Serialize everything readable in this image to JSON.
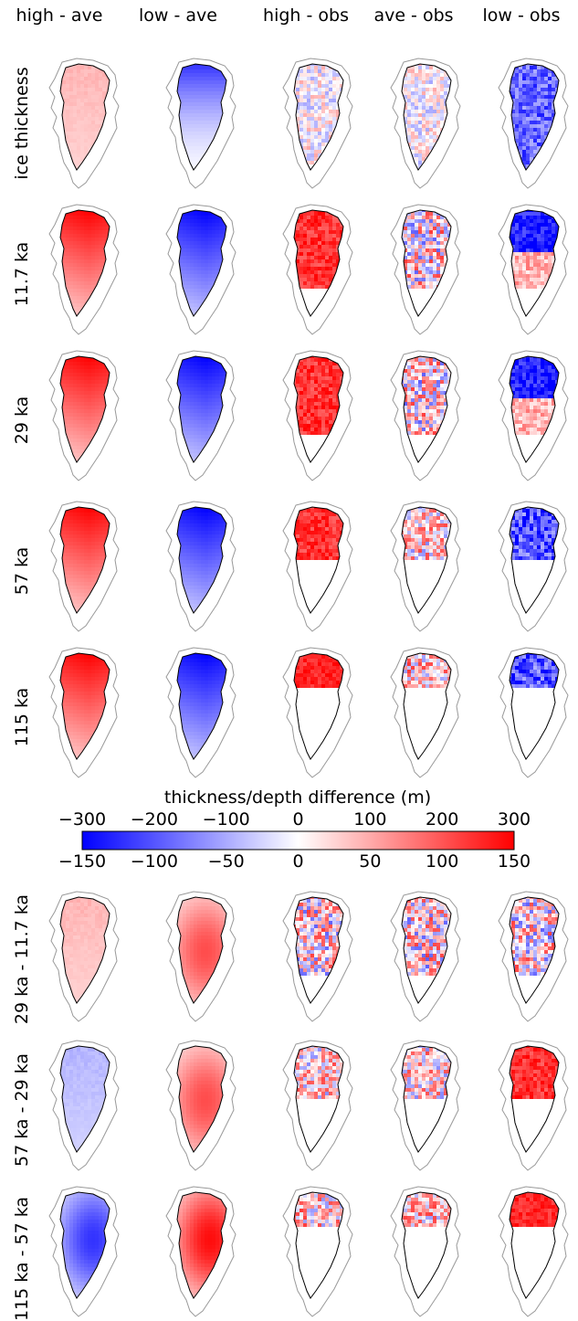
{
  "column_labels": [
    "high - ave",
    "low - ave",
    "high - obs",
    "ave - obs",
    "low - obs"
  ],
  "top_row_labels": [
    "ice thickness",
    "11.7 ka",
    "29 ka",
    "57 ka",
    "115 ka"
  ],
  "bottom_row_labels": [
    "29 ka - 11.7 ka",
    "57 ka - 29 ka",
    "115 ka - 57 ka"
  ],
  "colors": {
    "negative": "#0000ff",
    "zero": "#ffffff",
    "positive": "#ff0000",
    "outline_outer": "#999999",
    "outline_inner": "#000000"
  },
  "chart_data": {
    "type": "heatmap",
    "colorbar": {
      "title": "thickness/depth difference (m)",
      "top_ticks": [
        "−300",
        "−200",
        "−100",
        "0",
        "100",
        "200",
        "300"
      ],
      "bottom_ticks": [
        "−150",
        "−100",
        "−50",
        "0",
        "50",
        "100",
        "150"
      ],
      "top_range": [
        -300,
        300
      ],
      "bottom_range": [
        -150,
        150
      ],
      "colormap": "bwr"
    },
    "panels": [
      {
        "row": "ice thickness",
        "col": "high - ave",
        "pattern": "weak-positive"
      },
      {
        "row": "ice thickness",
        "col": "low - ave",
        "pattern": "negative-north"
      },
      {
        "row": "ice thickness",
        "col": "high - obs",
        "pattern": "mixed-noisy"
      },
      {
        "row": "ice thickness",
        "col": "ave - obs",
        "pattern": "mixed-noisy"
      },
      {
        "row": "ice thickness",
        "col": "low - obs",
        "pattern": "negative-noisy"
      },
      {
        "row": "11.7 ka",
        "col": "high - ave",
        "pattern": "positive-strong"
      },
      {
        "row": "11.7 ka",
        "col": "low - ave",
        "pattern": "negative-strong"
      },
      {
        "row": "11.7 ka",
        "col": "high - obs",
        "pattern": "positive-patch"
      },
      {
        "row": "11.7 ka",
        "col": "ave - obs",
        "pattern": "mixed-patch"
      },
      {
        "row": "11.7 ka",
        "col": "low - obs",
        "pattern": "negative-patch"
      },
      {
        "row": "29 ka",
        "col": "high - ave",
        "pattern": "positive-strong"
      },
      {
        "row": "29 ka",
        "col": "low - ave",
        "pattern": "negative-strong"
      },
      {
        "row": "29 ka",
        "col": "high - obs",
        "pattern": "positive-patch"
      },
      {
        "row": "29 ka",
        "col": "ave - obs",
        "pattern": "mixed-patch"
      },
      {
        "row": "29 ka",
        "col": "low - obs",
        "pattern": "negative-patch"
      },
      {
        "row": "57 ka",
        "col": "high - ave",
        "pattern": "positive-strong"
      },
      {
        "row": "57 ka",
        "col": "low - ave",
        "pattern": "negative-strong"
      },
      {
        "row": "57 ka",
        "col": "high - obs",
        "pattern": "positive-small"
      },
      {
        "row": "57 ka",
        "col": "ave - obs",
        "pattern": "mixed-small"
      },
      {
        "row": "57 ka",
        "col": "low - obs",
        "pattern": "negative-small"
      },
      {
        "row": "115 ka",
        "col": "high - ave",
        "pattern": "positive-strong"
      },
      {
        "row": "115 ka",
        "col": "low - ave",
        "pattern": "negative-strong"
      },
      {
        "row": "115 ka",
        "col": "high - obs",
        "pattern": "positive-tiny"
      },
      {
        "row": "115 ka",
        "col": "ave - obs",
        "pattern": "mixed-tiny"
      },
      {
        "row": "115 ka",
        "col": "low - obs",
        "pattern": "negative-tiny"
      },
      {
        "row": "29 ka - 11.7 ka",
        "col": "high - ave",
        "pattern": "weak-positive"
      },
      {
        "row": "29 ka - 11.7 ka",
        "col": "low - ave",
        "pattern": "positive-center"
      },
      {
        "row": "29 ka - 11.7 ka",
        "col": "high - obs",
        "pattern": "mixed-patch"
      },
      {
        "row": "29 ka - 11.7 ka",
        "col": "ave - obs",
        "pattern": "mixed-patch"
      },
      {
        "row": "29 ka - 11.7 ka",
        "col": "low - obs",
        "pattern": "mixed-patch"
      },
      {
        "row": "57 ka - 29 ka",
        "col": "high - ave",
        "pattern": "weak-negative"
      },
      {
        "row": "57 ka - 29 ka",
        "col": "low - ave",
        "pattern": "positive-center"
      },
      {
        "row": "57 ka - 29 ka",
        "col": "high - obs",
        "pattern": "mixed-small"
      },
      {
        "row": "57 ka - 29 ka",
        "col": "ave - obs",
        "pattern": "mixed-small"
      },
      {
        "row": "57 ka - 29 ka",
        "col": "low - obs",
        "pattern": "positive-small"
      },
      {
        "row": "115 ka - 57 ka",
        "col": "high - ave",
        "pattern": "negative-center"
      },
      {
        "row": "115 ka - 57 ka",
        "col": "low - ave",
        "pattern": "positive-center-strong"
      },
      {
        "row": "115 ka - 57 ka",
        "col": "high - obs",
        "pattern": "mixed-tiny"
      },
      {
        "row": "115 ka - 57 ka",
        "col": "ave - obs",
        "pattern": "mixed-tiny"
      },
      {
        "row": "115 ka - 57 ka",
        "col": "low - obs",
        "pattern": "positive-tiny"
      }
    ]
  }
}
